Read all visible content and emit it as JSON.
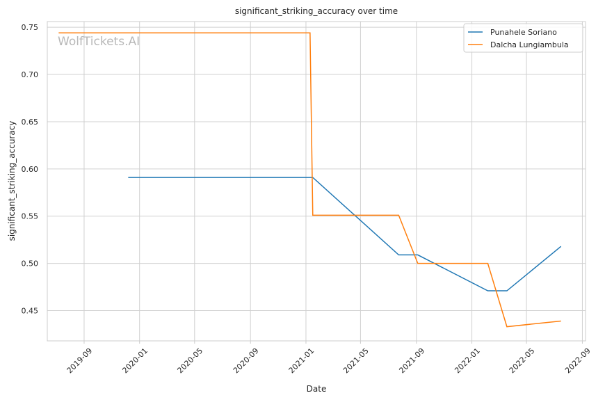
{
  "chart_data": {
    "type": "line",
    "title": "significant_striking_accuracy over time",
    "xlabel": "Date",
    "ylabel": "significant_striking_accuracy",
    "watermark": "WolfTickets.AI",
    "xlim": [
      "2019-06-12",
      "2022-09-08"
    ],
    "ylim": [
      0.418,
      0.756
    ],
    "x_ticks": [
      "2019-09",
      "2020-01",
      "2020-05",
      "2020-09",
      "2021-01",
      "2021-05",
      "2021-09",
      "2022-01",
      "2022-05",
      "2022-09"
    ],
    "y_ticks": [
      "0.45",
      "0.50",
      "0.55",
      "0.60",
      "0.65",
      "0.70",
      "0.75"
    ],
    "grid": true,
    "legend_position": "top-right",
    "series": [
      {
        "name": "Punahele Soriano",
        "color": "#1f77b4",
        "points": [
          {
            "x": "2019-12-07",
            "y": 0.591
          },
          {
            "x": "2021-01-16",
            "y": 0.591
          },
          {
            "x": "2021-07-24",
            "y": 0.509
          },
          {
            "x": "2021-09-04",
            "y": 0.509
          },
          {
            "x": "2022-02-05",
            "y": 0.471
          },
          {
            "x": "2022-03-19",
            "y": 0.471
          },
          {
            "x": "2022-07-16",
            "y": 0.518
          }
        ]
      },
      {
        "name": "Dalcha Lungiambula",
        "color": "#ff7f0e",
        "points": [
          {
            "x": "2019-07-07",
            "y": 0.744
          },
          {
            "x": "2021-01-10",
            "y": 0.744
          },
          {
            "x": "2021-01-16",
            "y": 0.551
          },
          {
            "x": "2021-07-24",
            "y": 0.551
          },
          {
            "x": "2021-09-04",
            "y": 0.5
          },
          {
            "x": "2022-02-05",
            "y": 0.5
          },
          {
            "x": "2022-03-19",
            "y": 0.433
          },
          {
            "x": "2022-07-16",
            "y": 0.439
          }
        ]
      }
    ]
  }
}
